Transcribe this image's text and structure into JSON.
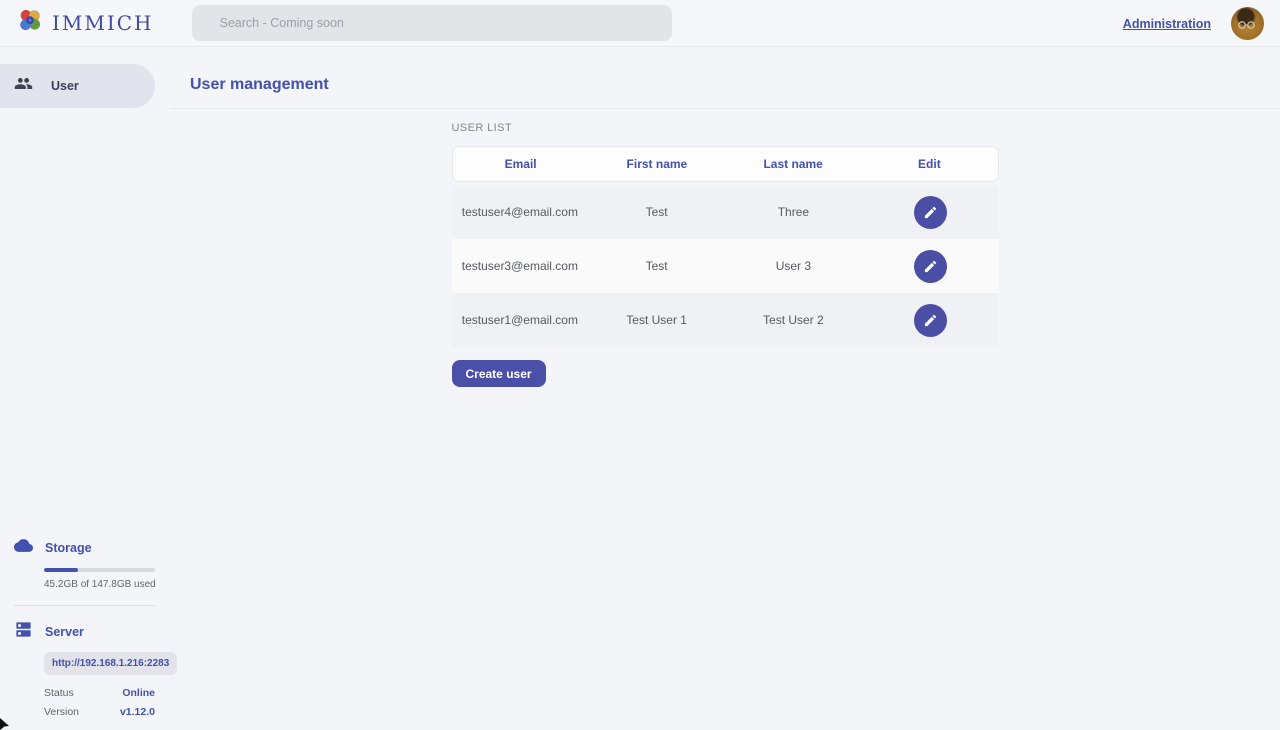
{
  "app": {
    "name": "IMMICH"
  },
  "header": {
    "search_placeholder": "Search - Coming soon",
    "admin_link": "Administration"
  },
  "sidebar": {
    "nav": {
      "user_label": "User"
    },
    "storage": {
      "title": "Storage",
      "usage_text": "45.2GB of 147.8GB used",
      "percent_used": 30.6
    },
    "server": {
      "title": "Server",
      "url": "http://192.168.1.216:2283",
      "status_label": "Status",
      "status_value": "Online",
      "version_label": "Version",
      "version_value": "v1.12.0"
    }
  },
  "page": {
    "title": "User management",
    "section_label": "USER LIST",
    "table": {
      "columns": [
        "Email",
        "First name",
        "Last name",
        "Edit"
      ],
      "rows": [
        {
          "email": "testuser4@email.com",
          "first_name": "Test",
          "last_name": "Three"
        },
        {
          "email": "testuser3@email.com",
          "first_name": "Test",
          "last_name": "User 3"
        },
        {
          "email": "testuser1@email.com",
          "first_name": "Test User 1",
          "last_name": "Test User 2"
        }
      ]
    },
    "create_button": "Create user"
  },
  "icons": {
    "logo": "immich-flower-icon",
    "nav_user": "users-icon",
    "storage": "cloud-icon",
    "server": "dns-server-icon",
    "edit": "pencil-icon"
  },
  "colors": {
    "primary": "#4250af",
    "accent_button": "#4a50a8",
    "page_bg": "#f4f5f9",
    "row_odd": "#f0f1f4",
    "row_even": "#fafafb",
    "search_bg": "#e3e4e8"
  }
}
